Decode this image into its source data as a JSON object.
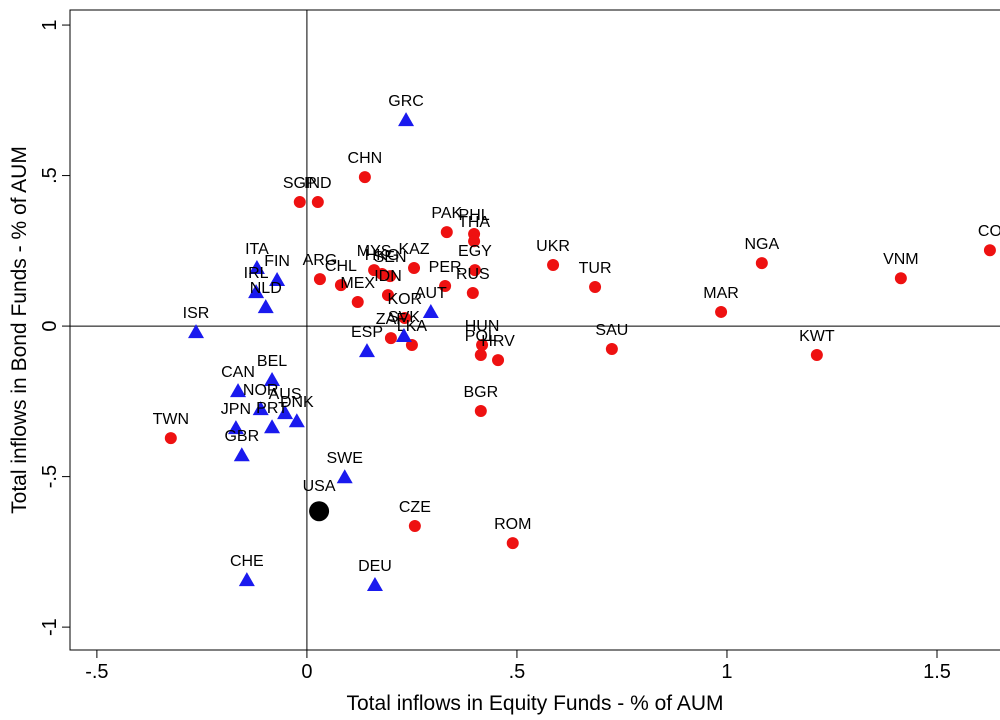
{
  "chart_data": {
    "type": "scatter",
    "xlabel": "Total inflows in Equity Funds  - % of AUM",
    "ylabel": "Total inflows in Bond Funds - % of AUM",
    "xlim": [
      -0.564,
      1.65
    ],
    "ylim": [
      -1.076,
      1.05
    ],
    "xticks": [
      {
        "value": -0.5,
        "label": "-.5"
      },
      0,
      {
        "value": 0.5,
        "label": ".5"
      },
      1,
      1.5
    ],
    "yticks": [
      {
        "value": -1,
        "label": "-1"
      },
      {
        "value": -0.5,
        "label": "-.5"
      },
      0,
      {
        "value": 0.5,
        "label": ".5"
      },
      1
    ],
    "reference_lines": {
      "x": 0,
      "y": 0
    },
    "series": [
      {
        "color": "#ee1111",
        "marker": "circle",
        "labels": [
          "CO",
          "VNM",
          "NGA",
          "MAR",
          "KWT",
          "UKR",
          "TUR",
          "SAU",
          "PAK",
          "PHL",
          "THA",
          "EGY",
          "PER",
          "RUS",
          "KAZ",
          "MYS",
          "HKG",
          "SEN",
          "IDN",
          "ARG",
          "CHL",
          "MEX",
          "KOR",
          "ZAF",
          "LKA",
          "HUN",
          "POL",
          "HRV",
          "BGR",
          "CZE",
          "ROM",
          "TWN",
          "SGP",
          "IND",
          "CHN"
        ],
        "x": [
          1.626,
          1.414,
          1.083,
          0.986,
          1.214,
          0.586,
          0.686,
          0.726,
          0.333,
          0.398,
          0.398,
          0.4,
          0.329,
          0.395,
          0.255,
          0.16,
          0.179,
          0.198,
          0.193,
          0.031,
          0.081,
          0.121,
          0.233,
          0.2,
          0.25,
          0.417,
          0.414,
          0.455,
          0.414,
          0.257,
          0.49,
          -0.324,
          -0.017,
          0.026,
          0.138
        ],
        "values": [
          0.252,
          0.159,
          0.209,
          0.047,
          -0.096,
          0.203,
          0.13,
          -0.076,
          0.312,
          0.306,
          0.282,
          0.186,
          0.133,
          0.11,
          0.193,
          0.186,
          0.173,
          0.166,
          0.103,
          0.156,
          0.136,
          0.08,
          0.027,
          -0.04,
          -0.063,
          -0.063,
          -0.096,
          -0.113,
          -0.282,
          -0.664,
          -0.721,
          -0.372,
          0.412,
          0.412,
          0.495
        ]
      },
      {
        "color": "#1a1aee",
        "marker": "triangle",
        "labels": [
          "GRC",
          "ITA",
          "FIN",
          "IRL",
          "NLD",
          "ISR",
          "AUT",
          "ESP",
          "SVK",
          "BEL",
          "CAN",
          "NOR",
          "AUS",
          "DNK",
          "JPN",
          "PRT",
          "GBR",
          "SWE",
          "CHE",
          "DEU"
        ],
        "x": [
          0.236,
          -0.119,
          -0.071,
          -0.121,
          -0.098,
          -0.264,
          0.295,
          0.143,
          0.231,
          -0.083,
          -0.164,
          -0.11,
          -0.052,
          -0.024,
          -0.169,
          -0.083,
          -0.155,
          0.09,
          -0.143,
          0.162
        ],
        "values": [
          0.684,
          0.193,
          0.153,
          0.113,
          0.063,
          -0.02,
          0.047,
          -0.083,
          -0.033,
          -0.179,
          -0.216,
          -0.276,
          -0.289,
          -0.316,
          -0.339,
          -0.336,
          -0.429,
          -0.502,
          -0.844,
          -0.86
        ]
      },
      {
        "color": "#000000",
        "marker": "big-circle",
        "labels": [
          "USA"
        ],
        "x": [
          0.029
        ],
        "values": [
          -0.615
        ]
      }
    ]
  }
}
